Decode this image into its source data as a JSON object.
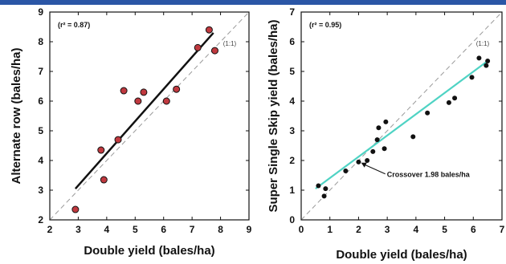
{
  "colors": {
    "banner": "#2b56a6",
    "left_points": "#c0393f",
    "left_fit": "#111111",
    "right_points": "#111111",
    "right_fit": "#4fd3c4",
    "one_to_one": "#9a9a9a"
  },
  "chart_data": [
    {
      "type": "scatter",
      "xlabel": "Double yield (bales/ha)",
      "ylabel": "Alternate row (bales/ha)",
      "xlim": [
        2,
        9
      ],
      "ylim": [
        2,
        9
      ],
      "xticks": [
        "2",
        "3",
        "4",
        "5",
        "6",
        "7",
        "8",
        "9"
      ],
      "yticks": [
        "2",
        "3",
        "4",
        "5",
        "6",
        "7",
        "8",
        "9"
      ],
      "annotations": {
        "r2": "(r² = 0.87)",
        "one_to_one": "(1:1)"
      },
      "grid": false,
      "points": [
        {
          "x": 2.9,
          "y": 2.35
        },
        {
          "x": 3.8,
          "y": 4.35
        },
        {
          "x": 3.9,
          "y": 3.35
        },
        {
          "x": 4.4,
          "y": 4.7
        },
        {
          "x": 4.6,
          "y": 6.35
        },
        {
          "x": 5.1,
          "y": 6.0
        },
        {
          "x": 5.3,
          "y": 6.3
        },
        {
          "x": 6.1,
          "y": 6.0
        },
        {
          "x": 6.45,
          "y": 6.4
        },
        {
          "x": 7.2,
          "y": 7.8
        },
        {
          "x": 7.6,
          "y": 8.4
        },
        {
          "x": 7.8,
          "y": 7.7
        }
      ],
      "fit_line": {
        "x": [
          2.9,
          7.75
        ],
        "y": [
          3.05,
          8.3
        ]
      },
      "reference_line": {
        "x": [
          2,
          9
        ],
        "y": [
          2,
          9
        ]
      }
    },
    {
      "type": "scatter",
      "xlabel": "Double yield (bales/ha)",
      "ylabel": "Super Single Skip yield (bales/ha)",
      "xlim": [
        0,
        7
      ],
      "ylim": [
        0,
        7
      ],
      "xticks": [
        "0",
        "1",
        "2",
        "3",
        "4",
        "5",
        "6",
        "7"
      ],
      "yticks": [
        "0",
        "1",
        "2",
        "3",
        "4",
        "5",
        "6",
        "7"
      ],
      "annotations": {
        "r2": "(r² = 0.95)",
        "one_to_one": "(1:1)",
        "crossover": "Crossover 1.98 bales/ha"
      },
      "grid": false,
      "points": [
        {
          "x": 0.6,
          "y": 1.15
        },
        {
          "x": 0.8,
          "y": 0.8
        },
        {
          "x": 0.85,
          "y": 1.05
        },
        {
          "x": 1.55,
          "y": 1.65
        },
        {
          "x": 2.0,
          "y": 1.95
        },
        {
          "x": 2.3,
          "y": 2.0
        },
        {
          "x": 2.5,
          "y": 2.3
        },
        {
          "x": 2.65,
          "y": 2.7
        },
        {
          "x": 2.7,
          "y": 3.1
        },
        {
          "x": 2.9,
          "y": 2.4
        },
        {
          "x": 2.95,
          "y": 3.3
        },
        {
          "x": 3.9,
          "y": 2.8
        },
        {
          "x": 4.4,
          "y": 3.6
        },
        {
          "x": 5.15,
          "y": 3.95
        },
        {
          "x": 5.35,
          "y": 4.1
        },
        {
          "x": 5.95,
          "y": 4.8
        },
        {
          "x": 6.2,
          "y": 5.45
        },
        {
          "x": 6.45,
          "y": 5.2
        },
        {
          "x": 6.5,
          "y": 5.35
        }
      ],
      "fit_line": {
        "x": [
          0.5,
          6.5
        ],
        "y": [
          1.05,
          5.35
        ]
      },
      "reference_line": {
        "x": [
          0,
          7
        ],
        "y": [
          0,
          7
        ]
      },
      "crossover": {
        "x": 1.98,
        "y": 1.98
      }
    }
  ]
}
